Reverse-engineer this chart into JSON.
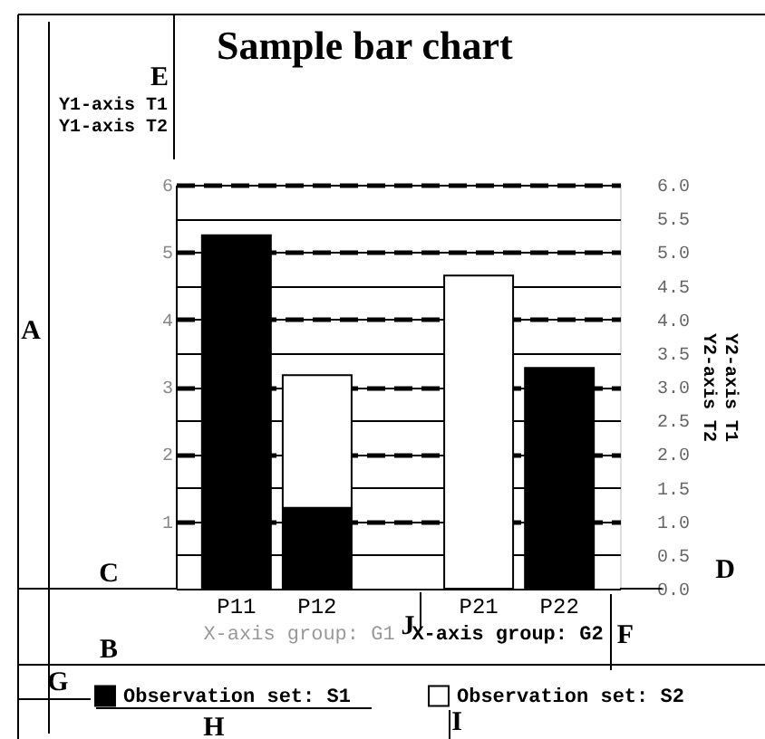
{
  "chart_data": {
    "type": "bar",
    "title": "Sample bar chart",
    "ylabel": "Y1-axis T1\nY1-axis T2",
    "y2label": "Y2-axis T1\nY2-axis T2",
    "categories": [
      "P11",
      "P12",
      null,
      "P21",
      "P22"
    ],
    "stacked": true,
    "series": [
      {
        "name": "Observation set: S1",
        "color": "#000000",
        "values": [
          5.25,
          1.2,
          null,
          null,
          3.28
        ]
      },
      {
        "name": "Observation set: S2",
        "color": "#ffffff",
        "values": [
          null,
          1.97,
          null,
          4.65,
          null
        ]
      }
    ],
    "ylim": [
      0,
      6
    ],
    "yticks": [
      1,
      2,
      3,
      4,
      5,
      6
    ],
    "y2lim": [
      0,
      6
    ],
    "y2ticks": [
      {
        "value": 0,
        "label": "0.0"
      },
      {
        "value": 0.5,
        "label": "0.5"
      },
      {
        "value": 1,
        "label": "1.0"
      },
      {
        "value": 1.5,
        "label": "1.5"
      },
      {
        "value": 2,
        "label": "2.0"
      },
      {
        "value": 2.5,
        "label": "2.5"
      },
      {
        "value": 3,
        "label": "3.0"
      },
      {
        "value": 3.5,
        "label": "3.5"
      },
      {
        "value": 4,
        "label": "4.0"
      },
      {
        "value": 4.5,
        "label": "4.5"
      },
      {
        "value": 5,
        "label": "5.0"
      },
      {
        "value": 5.5,
        "label": "5.5"
      },
      {
        "value": 6,
        "label": "6.0"
      }
    ],
    "grid": "y",
    "legend": "bottom",
    "annotations": [
      "X-axis group: G1",
      "X-axis group: G2",
      "A",
      "B",
      "C",
      "D",
      "E",
      "F",
      "G",
      "H",
      "I",
      "J"
    ]
  }
}
